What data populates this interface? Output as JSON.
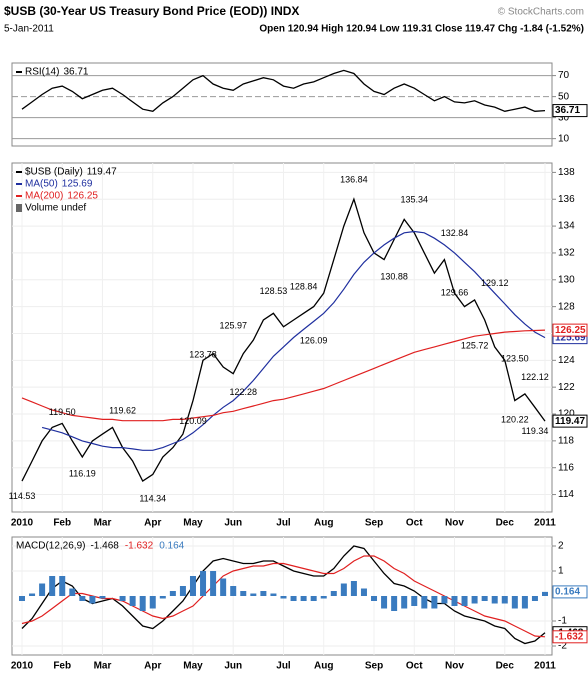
{
  "header": {
    "title": "$USB (30-Year US Treasury Bond Price (EOD)) INDX",
    "date": "5-Jan-2011",
    "quote": "Open 120.94 High 120.94 Low 119.31 Close 119.47 Chg -1.84 (-1.52%)",
    "credit": "© StockCharts.com"
  },
  "chart_data": [
    {
      "type": "line",
      "ylim": [
        3,
        82
      ],
      "yticks": [
        10,
        30,
        50,
        70
      ],
      "series": [
        {
          "name": "RSI(14)",
          "color": "#000000",
          "values": [
            38,
            45,
            52,
            58,
            60,
            55,
            48,
            52,
            56,
            58,
            52,
            45,
            38,
            36,
            44,
            50,
            58,
            66,
            70,
            62,
            58,
            56,
            62,
            65,
            68,
            66,
            60,
            58,
            62,
            64,
            68,
            72,
            75,
            72,
            62,
            55,
            52,
            58,
            62,
            58,
            52,
            46,
            50,
            45,
            44,
            46,
            42,
            40,
            36,
            38,
            40,
            36,
            36.71
          ]
        }
      ]
    },
    {
      "type": "line",
      "ylim": [
        112.7,
        138.7
      ],
      "yticks": [
        114,
        116,
        118,
        120,
        122,
        124,
        126,
        128,
        130,
        132,
        134,
        136,
        138
      ],
      "categories": [
        "2010",
        null,
        null,
        null,
        "Feb",
        null,
        null,
        null,
        "Mar",
        null,
        null,
        null,
        null,
        "Apr",
        null,
        null,
        null,
        "May",
        null,
        null,
        null,
        "Jun",
        null,
        null,
        null,
        null,
        "Jul",
        null,
        null,
        null,
        "Aug",
        null,
        null,
        null,
        null,
        "Sep",
        null,
        null,
        null,
        "Oct",
        null,
        null,
        null,
        "Nov",
        null,
        null,
        null,
        null,
        "Dec",
        null,
        null,
        null,
        "2011"
      ],
      "legend_note": "Volume undef",
      "series": [
        {
          "name": "$USB (Daily)",
          "color": "#000000",
          "values": [
            115.0,
            116.5,
            118.0,
            119.0,
            119.3,
            118.0,
            116.8,
            118.0,
            118.5,
            119.0,
            117.5,
            116.5,
            115.0,
            115.5,
            116.8,
            117.5,
            118.5,
            121.0,
            124.0,
            124.5,
            123.5,
            123.0,
            124.5,
            125.5,
            127.0,
            127.5,
            126.5,
            127.0,
            127.5,
            128.0,
            129.0,
            131.5,
            134.0,
            136.0,
            133.5,
            132.0,
            131.5,
            133.0,
            134.5,
            133.5,
            132.0,
            130.5,
            131.5,
            129.0,
            128.0,
            128.5,
            127.0,
            125.0,
            124.0,
            121.0,
            121.5,
            120.5,
            119.47
          ]
        },
        {
          "name": "MA(50)",
          "color": "#1f2f9f",
          "values": [
            null,
            null,
            119.0,
            118.8,
            118.6,
            118.3,
            118.0,
            117.8,
            117.6,
            117.5,
            117.5,
            117.4,
            117.3,
            117.3,
            117.5,
            117.8,
            118.1,
            118.6,
            119.2,
            119.9,
            120.5,
            121.0,
            121.7,
            122.5,
            123.4,
            124.3,
            125.0,
            125.7,
            126.3,
            126.9,
            127.5,
            128.3,
            129.3,
            130.4,
            131.3,
            132.0,
            132.6,
            133.1,
            133.5,
            133.6,
            133.5,
            133.1,
            132.6,
            132.0,
            131.3,
            130.6,
            129.8,
            129.0,
            128.2,
            127.4,
            126.7,
            126.1,
            125.69
          ]
        },
        {
          "name": "MA(200)",
          "color": "#e02020",
          "values": [
            121.2,
            120.9,
            120.6,
            120.3,
            120.1,
            119.9,
            119.8,
            119.7,
            119.6,
            119.6,
            119.5,
            119.5,
            119.5,
            119.5,
            119.5,
            119.6,
            119.6,
            119.7,
            119.8,
            119.9,
            120.1,
            120.2,
            120.4,
            120.6,
            120.8,
            121.0,
            121.1,
            121.3,
            121.5,
            121.7,
            121.9,
            122.2,
            122.5,
            122.8,
            123.1,
            123.4,
            123.7,
            124.0,
            124.3,
            124.6,
            124.8,
            125.0,
            125.2,
            125.4,
            125.6,
            125.8,
            125.9,
            126.0,
            126.1,
            126.15,
            126.2,
            126.22,
            126.25
          ]
        }
      ],
      "highs": [
        {
          "x": 4,
          "value": 119.5,
          "label": "119.50"
        },
        {
          "x": 10,
          "value": 119.62,
          "label": "119.62"
        },
        {
          "x": 18,
          "value": 123.78,
          "label": "123.78"
        },
        {
          "x": 21,
          "value": 125.97,
          "label": "125.97"
        },
        {
          "x": 25,
          "value": 128.53,
          "label": "128.53"
        },
        {
          "x": 28,
          "value": 128.84,
          "label": "128.84"
        },
        {
          "x": 33,
          "value": 136.84,
          "label": "136.84"
        },
        {
          "x": 39,
          "value": 135.34,
          "label": "135.34"
        },
        {
          "x": 43,
          "value": 132.84,
          "label": "132.84"
        },
        {
          "x": 47,
          "value": 129.12,
          "label": "129.12"
        },
        {
          "x": 49,
          "value": 123.5,
          "label": "123.50"
        },
        {
          "x": 51,
          "value": 122.12,
          "label": "122.12"
        }
      ],
      "lows": [
        {
          "x": 0,
          "value": 114.53,
          "label": "114.53"
        },
        {
          "x": 6,
          "value": 116.19,
          "label": "116.19"
        },
        {
          "x": 13,
          "value": 114.34,
          "label": "114.34"
        },
        {
          "x": 17,
          "value": 120.09,
          "label": "120.09"
        },
        {
          "x": 22,
          "value": 122.28,
          "label": "122.28"
        },
        {
          "x": 29,
          "value": 126.09,
          "label": "126.09"
        },
        {
          "x": 37,
          "value": 130.88,
          "label": "130.88"
        },
        {
          "x": 43,
          "value": 129.66,
          "label": "129.66"
        },
        {
          "x": 45,
          "value": 125.72,
          "label": "125.72"
        },
        {
          "x": 49,
          "value": 120.22,
          "label": "120.22"
        },
        {
          "x": 51,
          "value": 119.34,
          "label": "119.34"
        }
      ]
    },
    {
      "type": "line",
      "title": "MACD(12,26,9)",
      "ylim": [
        -2.36,
        2.36
      ],
      "yticks": [
        -2,
        -1,
        1,
        2
      ],
      "categories": [
        "2010",
        null,
        null,
        null,
        "Feb",
        null,
        null,
        null,
        "Mar",
        null,
        null,
        null,
        null,
        "Apr",
        null,
        null,
        null,
        "May",
        null,
        null,
        null,
        "Jun",
        null,
        null,
        null,
        null,
        "Jul",
        null,
        null,
        null,
        "Aug",
        null,
        null,
        null,
        null,
        "Sep",
        null,
        null,
        null,
        "Oct",
        null,
        null,
        null,
        "Nov",
        null,
        null,
        null,
        null,
        "Dec",
        null,
        null,
        null,
        "2011"
      ],
      "series": [
        {
          "name": "MACD",
          "color": "#000000",
          "values": [
            -1.3,
            -0.9,
            -0.3,
            0.3,
            0.6,
            0.4,
            -0.1,
            -0.3,
            -0.2,
            -0.1,
            -0.4,
            -0.8,
            -1.2,
            -1.3,
            -1.0,
            -0.6,
            -0.2,
            0.4,
            1.0,
            1.4,
            1.5,
            1.4,
            1.3,
            1.3,
            1.4,
            1.4,
            1.2,
            1.0,
            0.9,
            0.8,
            0.8,
            1.1,
            1.6,
            2.0,
            1.9,
            1.4,
            0.9,
            0.5,
            0.4,
            0.2,
            -0.1,
            -0.3,
            -0.3,
            -0.6,
            -0.8,
            -0.9,
            -1.0,
            -1.2,
            -1.3,
            -1.7,
            -1.9,
            -1.8,
            -1.468
          ]
        },
        {
          "name": "Signal",
          "color": "#e02020",
          "values": [
            -1.1,
            -1.0,
            -0.8,
            -0.5,
            -0.2,
            0.1,
            0.1,
            0.0,
            -0.1,
            -0.1,
            -0.2,
            -0.4,
            -0.6,
            -0.8,
            -0.9,
            -0.8,
            -0.6,
            -0.4,
            0.0,
            0.4,
            0.8,
            1.0,
            1.1,
            1.2,
            1.2,
            1.3,
            1.3,
            1.2,
            1.1,
            1.0,
            0.9,
            0.9,
            1.1,
            1.4,
            1.6,
            1.6,
            1.4,
            1.1,
            0.9,
            0.6,
            0.4,
            0.2,
            0.0,
            -0.2,
            -0.4,
            -0.6,
            -0.8,
            -0.9,
            -1.0,
            -1.2,
            -1.4,
            -1.6,
            -1.632
          ]
        },
        {
          "name": "Histogram",
          "color": "#3a7bbf",
          "type": "bar",
          "values": [
            -0.2,
            0.1,
            0.5,
            0.8,
            0.8,
            0.3,
            -0.2,
            -0.3,
            -0.1,
            0,
            -0.2,
            -0.4,
            -0.6,
            -0.5,
            -0.1,
            0.2,
            0.4,
            0.8,
            1.0,
            1.0,
            0.7,
            0.4,
            0.2,
            0.1,
            0.2,
            0.1,
            -0.1,
            -0.2,
            -0.2,
            -0.2,
            -0.1,
            0.2,
            0.5,
            0.6,
            0.3,
            -0.2,
            -0.5,
            -0.6,
            -0.5,
            -0.4,
            -0.5,
            -0.5,
            -0.3,
            -0.4,
            -0.4,
            -0.3,
            -0.2,
            -0.3,
            -0.3,
            -0.5,
            -0.5,
            -0.2,
            0.164
          ]
        }
      ]
    }
  ]
}
